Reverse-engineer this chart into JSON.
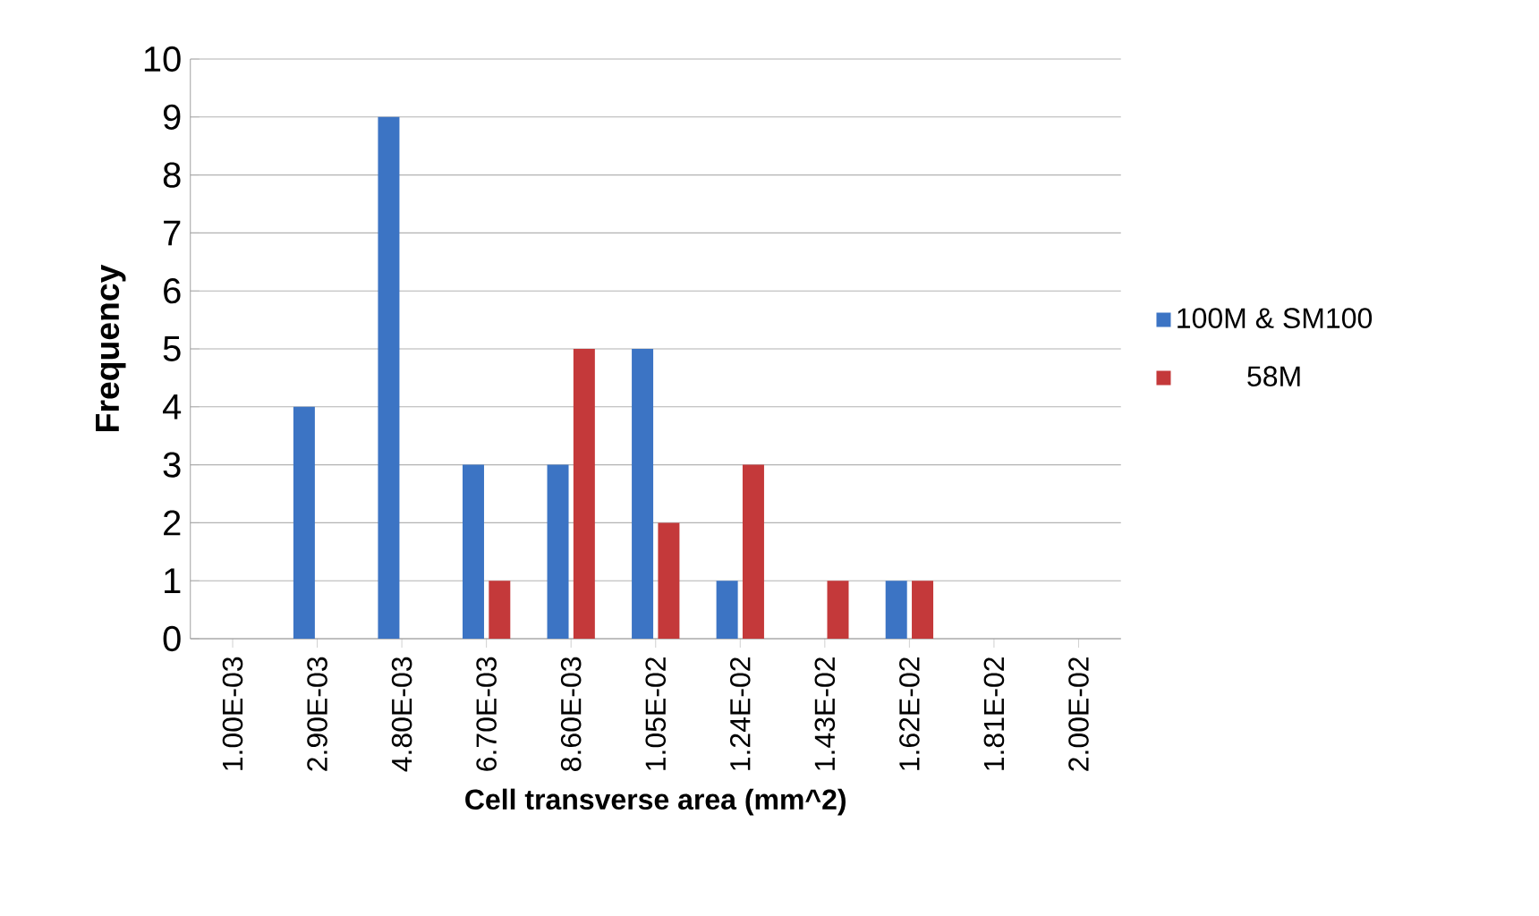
{
  "chart_data": {
    "type": "bar",
    "xlabel": "Cell transverse area (mm^2)",
    "ylabel": "Frequency",
    "categories": [
      "1.00E-03",
      "2.90E-03",
      "4.80E-03",
      "6.70E-03",
      "8.60E-03",
      "1.05E-02",
      "1.24E-02",
      "1.43E-02",
      "1.62E-02",
      "1.81E-02",
      "2.00E-02"
    ],
    "series": [
      {
        "name": "100M & SM100",
        "color": "#3c74c4",
        "values": [
          0,
          4,
          9,
          3,
          3,
          5,
          1,
          0,
          1,
          0,
          0
        ]
      },
      {
        "name": "58M",
        "color": "#c4393a",
        "values": [
          0,
          0,
          0,
          1,
          5,
          2,
          3,
          1,
          1,
          0,
          0
        ]
      }
    ],
    "ylim": [
      0,
      10
    ],
    "yticks": [
      0,
      1,
      2,
      3,
      4,
      5,
      6,
      7,
      8,
      9,
      10
    ],
    "grid": "y",
    "legend": "right"
  }
}
